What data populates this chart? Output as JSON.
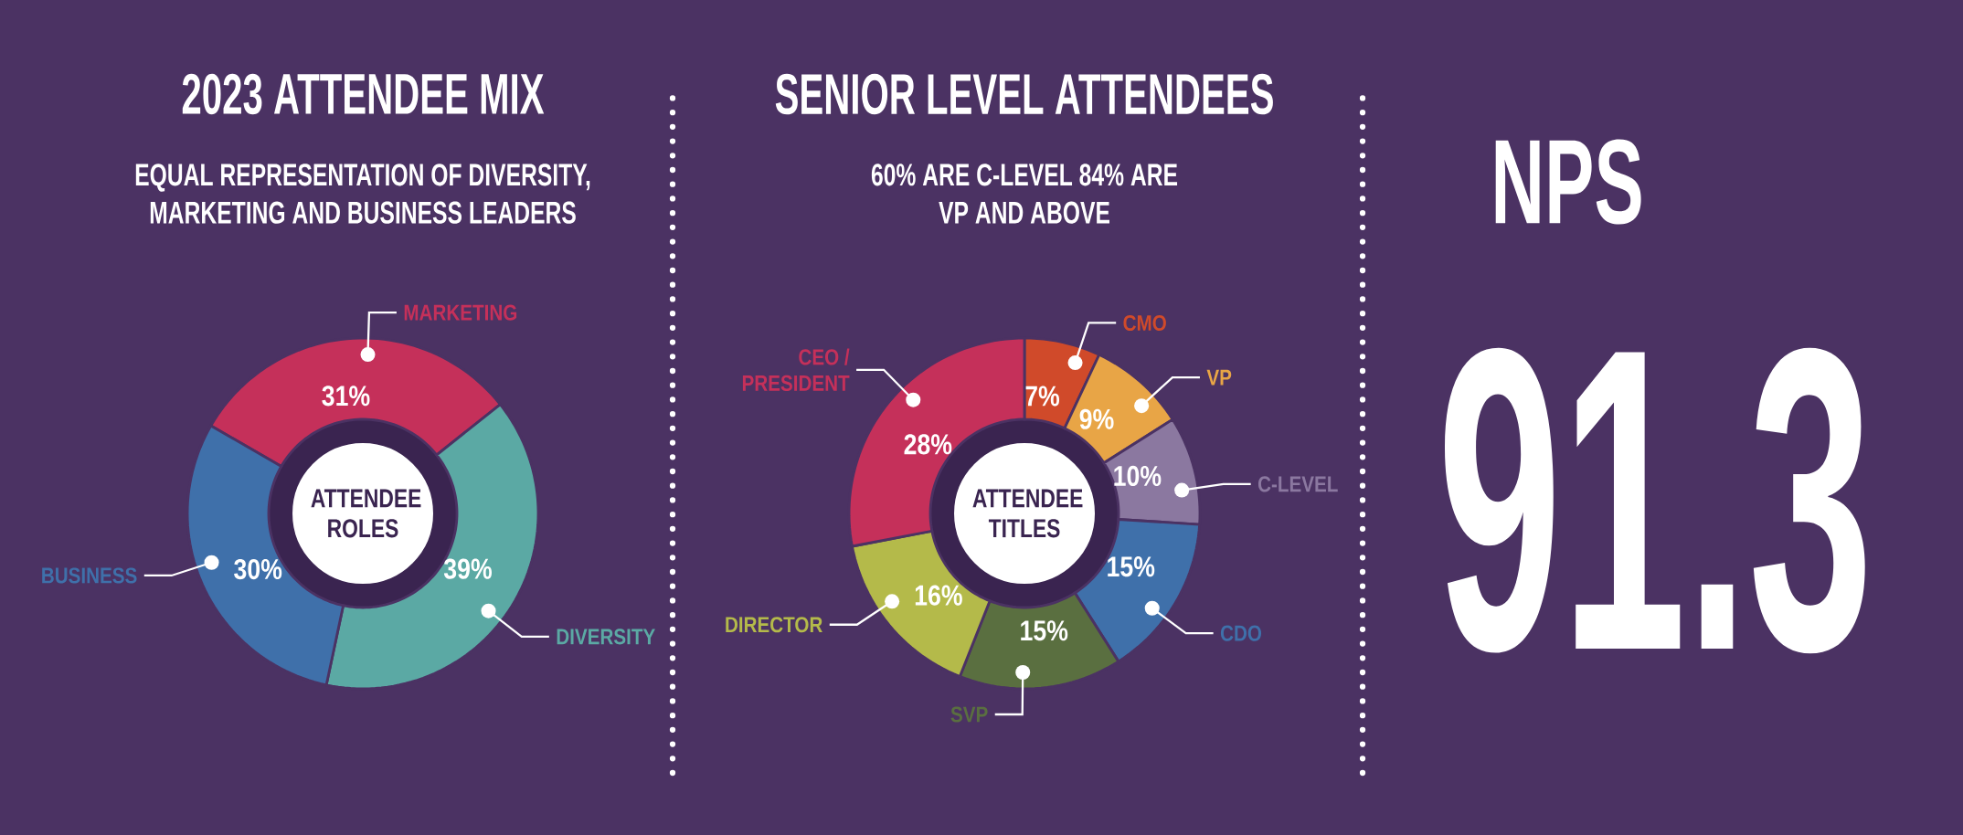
{
  "chart_data": [
    {
      "type": "donut",
      "title": "2023 ATTENDEE MIX",
      "subtitle": "EQUAL REPRESENTATION OF DIVERSITY, MARKETING AND BUSINESS LEADERS",
      "categories": [
        "MARKETING",
        "DIVERSITY",
        "BUSINESS"
      ],
      "values": [
        31,
        39,
        30
      ],
      "value_labels": [
        "31%",
        "39%",
        "30%"
      ],
      "colors": [
        "#c5305a",
        "#5ba9a4",
        "#3f70aa"
      ],
      "annotations": [
        "ATTENDEE ROLES"
      ]
    },
    {
      "type": "donut",
      "title": "SENIOR LEVEL ATTENDEES",
      "subtitle": "60% ARE C-LEVEL 84% ARE VP AND ABOVE",
      "categories": [
        "CMO",
        "VP",
        "C-LEVEL",
        "CDO",
        "SVP",
        "DIRECTOR",
        "CEO / PRESIDENT"
      ],
      "values": [
        7,
        9,
        10,
        15,
        15,
        16,
        28
      ],
      "value_labels": [
        "7%",
        "9%",
        "10%",
        "15%",
        "15%",
        "16%",
        "28%"
      ],
      "colors": [
        "#d04a2a",
        "#e8a546",
        "#8b78a0",
        "#3f70aa",
        "#5a6f40",
        "#b4ba4a",
        "#c5305a"
      ],
      "annotations": [
        "ATTENDEE TITLES"
      ]
    },
    {
      "type": "other",
      "title": "NPS",
      "values": [
        91.3
      ],
      "data_labels": true
    }
  ]
}
